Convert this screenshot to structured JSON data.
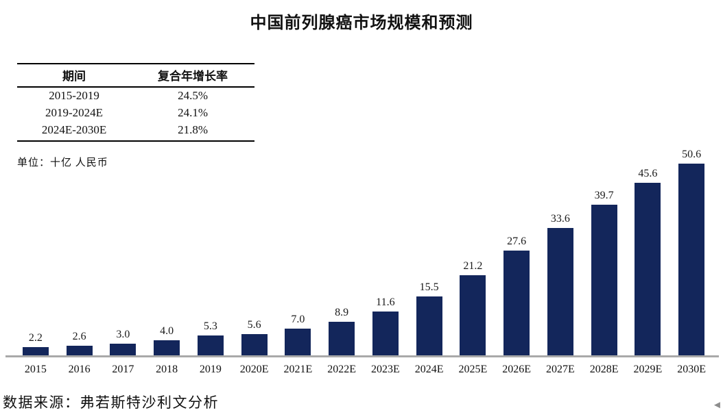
{
  "title": "中国前列腺癌市场规模和预测",
  "cagr_table": {
    "headers": [
      "期间",
      "复合年增长率"
    ],
    "rows": [
      {
        "period": "2015-2019",
        "cagr": "24.5%"
      },
      {
        "period": "2019-2024E",
        "cagr": "24.1%"
      },
      {
        "period": "2024E-2030E",
        "cagr": "21.8%"
      }
    ]
  },
  "unit_label": "单位：十亿 人民币",
  "source_label": "数据来源：弗若斯特沙利文分析",
  "icons": {
    "nav_arrow": "◄"
  },
  "colors": {
    "bar": "#13265B",
    "axis": "#A9A9A9"
  },
  "chart_data": {
    "type": "bar",
    "title": "中国前列腺癌市场规模和预测",
    "categories": [
      "2015",
      "2016",
      "2017",
      "2018",
      "2019",
      "2020E",
      "2021E",
      "2022E",
      "2023E",
      "2024E",
      "2025E",
      "2026E",
      "2027E",
      "2028E",
      "2029E",
      "2030E"
    ],
    "values": [
      2.2,
      2.6,
      3.0,
      4.0,
      5.3,
      5.6,
      7.0,
      8.9,
      11.6,
      15.5,
      21.2,
      27.6,
      33.6,
      39.7,
      45.6,
      50.6
    ],
    "xlabel": "",
    "ylabel": "十亿 人民币",
    "ylim": [
      0,
      55
    ],
    "grid": false,
    "legend": "none",
    "value_labels": true
  }
}
